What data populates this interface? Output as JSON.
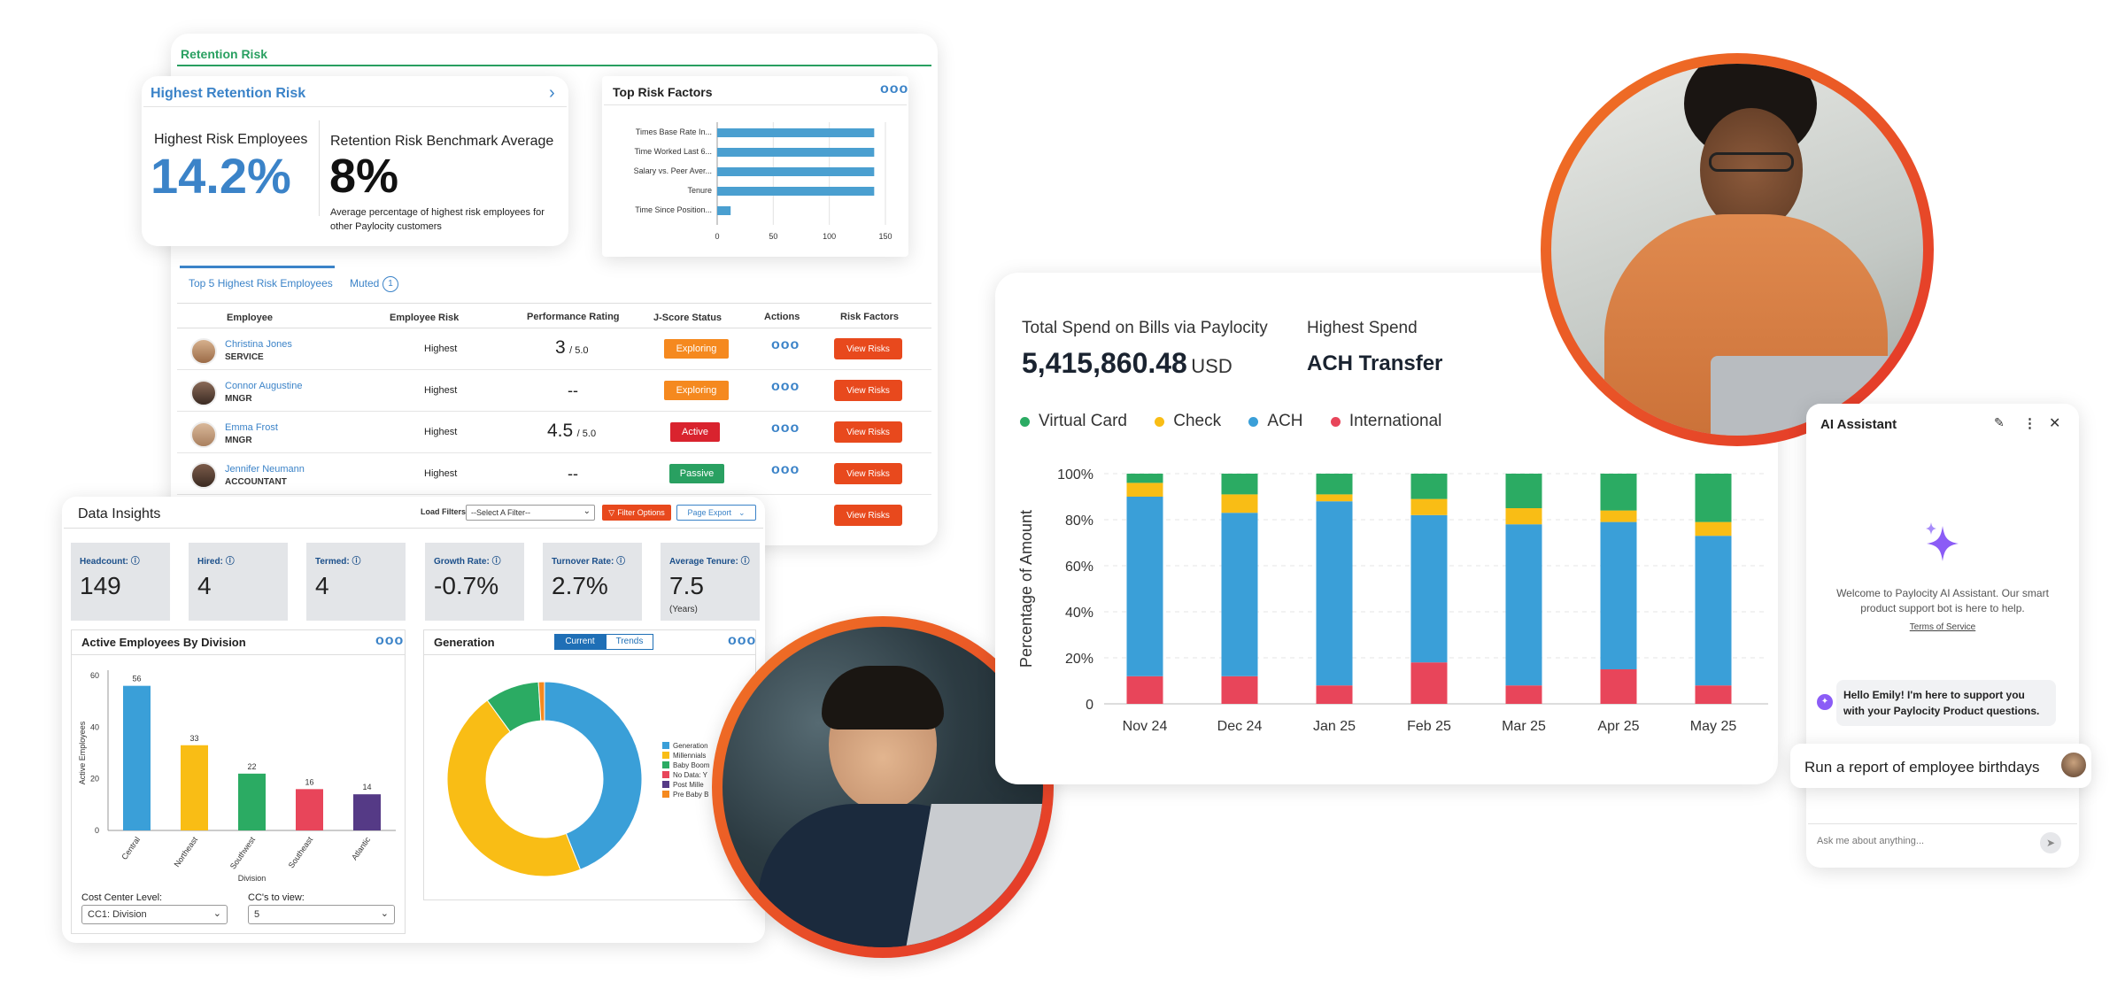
{
  "retention": {
    "tab_title": "Retention Risk",
    "highest_card": {
      "title": "Highest Retention Risk",
      "employees_label": "Highest Risk Employees",
      "employees_value": "14.2%",
      "benchmark_label": "Retention Risk Benchmark Average",
      "benchmark_value": "8%",
      "benchmark_note": "Average percentage of highest risk employees for other Paylocity customers"
    },
    "top_risk_factors": {
      "title": "Top Risk Factors",
      "chart_data": {
        "type": "bar",
        "orientation": "horizontal",
        "categories": [
          "Times Base Rate In...",
          "Time Worked Last 6...",
          "Salary vs. Peer Aver...",
          "Tenure",
          "Time Since Position..."
        ],
        "values": [
          140,
          140,
          140,
          140,
          12
        ],
        "xlim": [
          0,
          150
        ],
        "xticks": [
          "0",
          "50",
          "100",
          "150"
        ],
        "color": "#4a9fd0"
      }
    },
    "tabs": [
      "Top 5 Highest Risk Employees",
      "Muted"
    ],
    "muted_count": "1",
    "columns": [
      "Employee",
      "Employee Risk",
      "Performance Rating",
      "J-Score Status",
      "Actions",
      "Risk Factors"
    ],
    "rows": [
      {
        "name": "Christina Jones",
        "title": "SERVICE",
        "risk": "Highest",
        "rating": "3",
        "rating_of": "/ 5.0",
        "status": "Exploring",
        "status_color": "#f5891f",
        "action": "View Risks"
      },
      {
        "name": "Connor Augustine",
        "title": "MNGR",
        "risk": "Highest",
        "rating": "--",
        "rating_of": "",
        "status": "Exploring",
        "status_color": "#f5891f",
        "action": "View Risks"
      },
      {
        "name": "Emma Frost",
        "title": "MNGR",
        "risk": "Highest",
        "rating": "4.5",
        "rating_of": "/ 5.0",
        "status": "Active",
        "status_color": "#d9232e",
        "action": "View Risks"
      },
      {
        "name": "Jennifer Neumann",
        "title": "ACCOUNTANT",
        "risk": "Highest",
        "rating": "--",
        "rating_of": "",
        "status": "Passive",
        "status_color": "#29a061",
        "action": "View Risks"
      },
      {
        "name": "",
        "title": "",
        "risk": "",
        "rating": "",
        "rating_of": "",
        "status": "",
        "status_color": "",
        "action": "View Risks"
      }
    ]
  },
  "insights": {
    "title": "Data Insights",
    "load_filters_label": "Load Filters",
    "filter_placeholder": "--Select A Filter--",
    "filter_options_label": "Filter Options",
    "page_export_label": "Page Export",
    "kpis": [
      {
        "label": "Headcount:",
        "value": "149",
        "sub": ""
      },
      {
        "label": "Hired:",
        "value": "4",
        "sub": ""
      },
      {
        "label": "Termed:",
        "value": "4",
        "sub": ""
      },
      {
        "label": "Growth Rate:",
        "value": "-0.7%",
        "sub": ""
      },
      {
        "label": "Turnover Rate:",
        "value": "2.7%",
        "sub": ""
      },
      {
        "label": "Average Tenure:",
        "value": "7.5",
        "sub": "(Years)"
      }
    ],
    "division_chart": {
      "title": "Active Employees By Division",
      "ylabel": "Active Employees",
      "xlabel": "Division",
      "yticks": [
        "0",
        "20",
        "40",
        "60"
      ],
      "chart_data": {
        "type": "bar",
        "categories": [
          "Central",
          "Northeast",
          "Southwest",
          "Southeast",
          "Atlantic"
        ],
        "values": [
          56,
          33,
          22,
          16,
          14
        ],
        "colors": [
          "#3a9fd8",
          "#f9bd15",
          "#2bab63",
          "#e8455a",
          "#553a86"
        ],
        "ylim": [
          0,
          60
        ]
      },
      "cost_center_label": "Cost Center Level:",
      "cost_center_value": "CC1: Division",
      "ccs_label": "CC's to view:",
      "ccs_value": "5"
    },
    "generation_chart": {
      "title": "Generation",
      "toggle_current": "Current",
      "toggle_trends": "Trends",
      "chart_data": {
        "type": "pie",
        "labels": [
          "Generation",
          "Millennials",
          "Baby Boom",
          "No Data: Y",
          "Post Mille",
          "Pre Baby B"
        ],
        "values": [
          44,
          46,
          9,
          0,
          0,
          1
        ],
        "colors": [
          "#3a9fd8",
          "#f9bd15",
          "#2bab63",
          "#e8455a",
          "#553a86",
          "#f5891f"
        ]
      }
    }
  },
  "spend": {
    "total_label": "Total Spend on Bills via Paylocity",
    "total_value": "5,415,860.48",
    "total_currency": "USD",
    "highest_label": "Highest Spend",
    "highest_value": "ACH Transfer",
    "ylabel": "Percentage of Amount",
    "yticks": [
      "0",
      "20%",
      "40%",
      "60%",
      "80%",
      "100%"
    ],
    "chart_data": {
      "type": "bar",
      "stacked": true,
      "categories": [
        "Nov 24",
        "Dec 24",
        "Jan 25",
        "Feb 25",
        "Mar 25",
        "Apr 25",
        "May 25"
      ],
      "series": [
        {
          "name": "International",
          "color": "#e8455a",
          "values": [
            12,
            12,
            8,
            18,
            8,
            15,
            8
          ]
        },
        {
          "name": "ACH",
          "color": "#3a9fd8",
          "values": [
            78,
            71,
            80,
            64,
            70,
            64,
            65
          ]
        },
        {
          "name": "Check",
          "color": "#f9bd15",
          "values": [
            6,
            8,
            3,
            7,
            7,
            5,
            6
          ]
        },
        {
          "name": "Virtual Card",
          "color": "#2bab63",
          "values": [
            4,
            9,
            9,
            11,
            15,
            16,
            21
          ]
        }
      ],
      "legend_order": [
        "Virtual Card",
        "Check",
        "ACH",
        "International"
      ],
      "ylim": [
        0,
        100
      ],
      "legend": "top-left",
      "grid": true
    }
  },
  "assistant": {
    "title": "AI Assistant",
    "welcome": "Welcome to Paylocity AI Assistant. Our smart product support bot is here to help.",
    "terms": "Terms of Service",
    "bot_message": "Hello Emily! I'm here to support you with your Paylocity Product questions.",
    "user_message": "Run a report of employee birthdays",
    "input_placeholder": "Ask me about anything...",
    "accent": "#8b5cf6"
  }
}
